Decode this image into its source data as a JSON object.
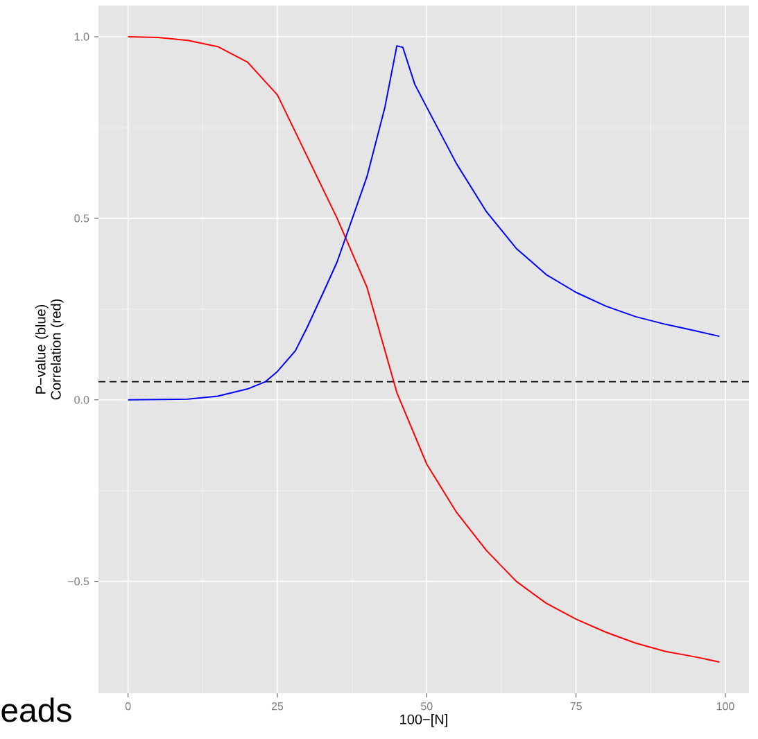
{
  "chart_data": {
    "type": "line",
    "xlabel": "100−[N]",
    "ylabel": "P−value (blue) Correlation (red)",
    "annotations": [
      "eads"
    ],
    "xlim": [
      -4.95,
      103.95
    ],
    "ylim": [
      -0.808,
      1.086
    ],
    "xticks": [
      0,
      25,
      50,
      75,
      100
    ],
    "yticks": [
      {
        "value": -0.5,
        "label": "−0.5"
      },
      {
        "value": 0,
        "label": "0.0"
      },
      {
        "value": 0.5,
        "label": "0.5"
      },
      {
        "value": 1,
        "label": "1.0"
      }
    ],
    "grid": true,
    "marker": "none",
    "line_style": "solid",
    "ref_lines": [
      {
        "axis": "y",
        "value": 0.05,
        "color": "#000000",
        "line_style": "dashed"
      }
    ],
    "series": [
      {
        "color": "#ff0000",
        "x": [
          0,
          5,
          10,
          15,
          20,
          25,
          30,
          35,
          40,
          45,
          50,
          55,
          60,
          65,
          70,
          75,
          80,
          85,
          90,
          95,
          99
        ],
        "values": [
          1.0,
          0.998,
          0.99,
          0.973,
          0.93,
          0.84,
          0.67,
          0.5,
          0.31,
          0.02,
          -0.177,
          -0.31,
          -0.415,
          -0.5,
          -0.56,
          -0.604,
          -0.64,
          -0.67,
          -0.693,
          -0.708,
          -0.722
        ]
      },
      {
        "color": "#0000ff",
        "x": [
          0,
          10,
          15,
          20,
          23,
          25,
          28,
          30,
          33,
          35,
          40,
          43,
          45,
          46,
          48,
          50,
          55,
          60,
          65,
          70,
          75,
          80,
          85,
          90,
          95,
          99
        ],
        "values": [
          0,
          0.002,
          0.01,
          0.03,
          0.05,
          0.078,
          0.135,
          0.2,
          0.307,
          0.38,
          0.615,
          0.806,
          0.975,
          0.971,
          0.869,
          0.806,
          0.65,
          0.518,
          0.417,
          0.345,
          0.296,
          0.258,
          0.229,
          0.208,
          0.19,
          0.175
        ]
      }
    ]
  }
}
